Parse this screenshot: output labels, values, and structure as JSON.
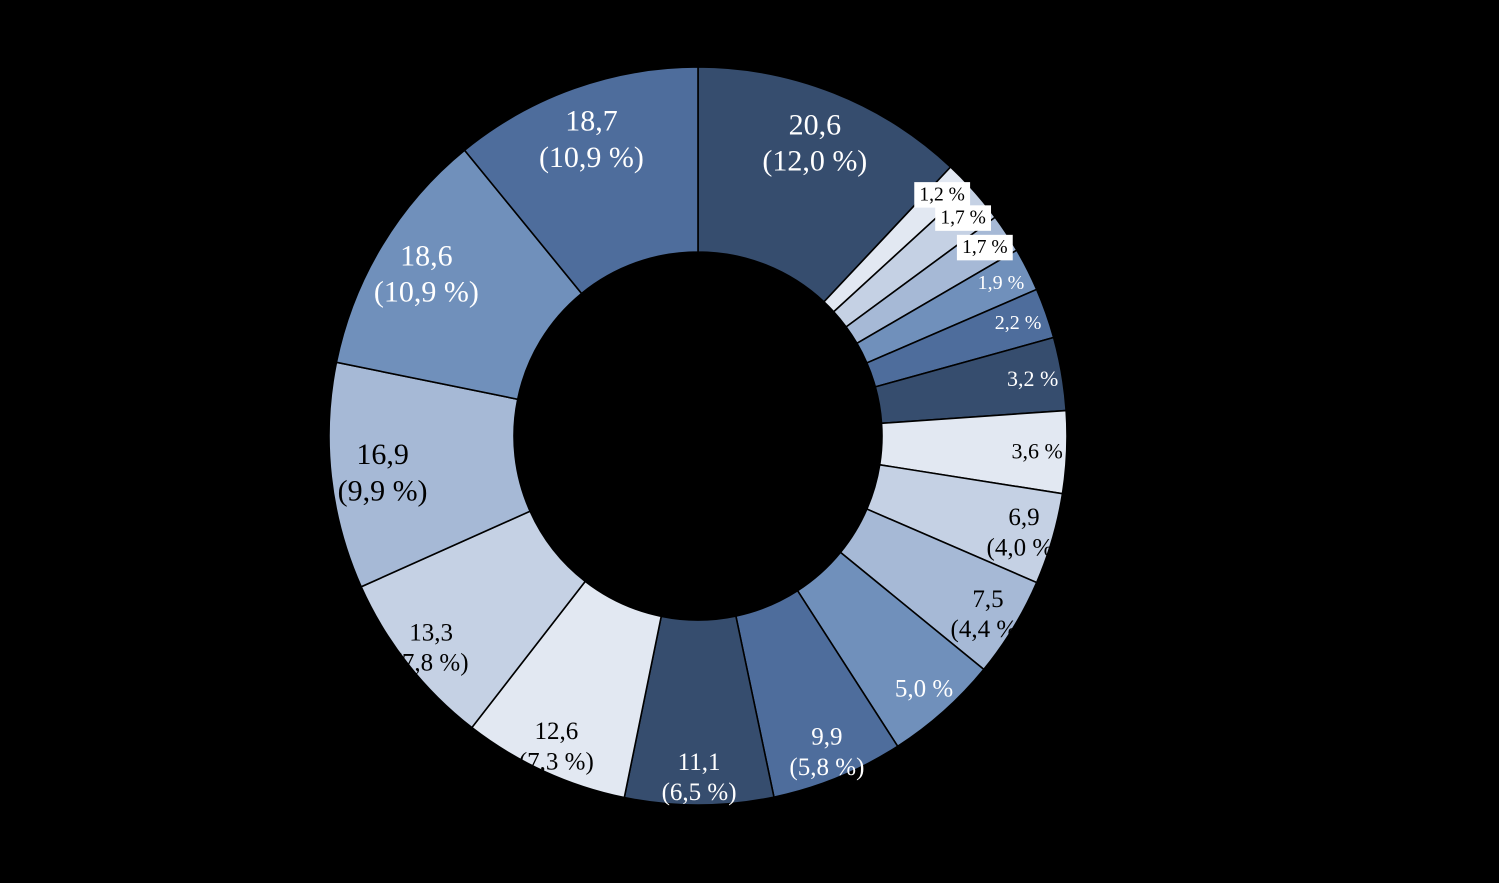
{
  "chart_data": {
    "type": "pie",
    "subtype": "donut",
    "title": "",
    "legend": "none",
    "background": "#000000",
    "border_color": "#000000",
    "start_angle_deg": 0,
    "direction": "clockwise",
    "inner_radius_ratio": 0.5,
    "label_format": "value (percent %), comma decimal separator",
    "palette": [
      "#E2E8F2",
      "#C5D1E4",
      "#A6B9D6",
      "#7090BB",
      "#4E6D9C",
      "#364D6E"
    ],
    "text_colors": {
      "light": "#FFFFFF",
      "dark": "#000000"
    },
    "label_box_fill": "#FFFFFF",
    "slices": [
      {
        "value": 20.6,
        "pct": 12.0,
        "value_label": "20,6",
        "pct_label": "(12,0 %)",
        "shade": 6,
        "text": "light",
        "boxed": false
      },
      {
        "pct": 1.2,
        "pct_label": "1,2 %",
        "shade": 1,
        "text": "dark",
        "boxed": true
      },
      {
        "pct": 1.7,
        "pct_label": "1,7 %",
        "shade": 2,
        "text": "dark",
        "boxed": true
      },
      {
        "pct": 1.7,
        "pct_label": "1,7 %",
        "shade": 3,
        "text": "dark",
        "boxed": true
      },
      {
        "pct": 1.9,
        "pct_label": "1,9 %",
        "shade": 4,
        "text": "light",
        "boxed": false
      },
      {
        "pct": 2.2,
        "pct_label": "2,2 %",
        "shade": 5,
        "text": "light",
        "boxed": false
      },
      {
        "pct": 3.2,
        "pct_label": "3,2 %",
        "shade": 6,
        "text": "light",
        "boxed": false
      },
      {
        "pct": 3.6,
        "pct_label": "3,6 %",
        "shade": 1,
        "text": "dark",
        "boxed": false
      },
      {
        "value": 6.9,
        "pct": 4.0,
        "value_label": "6,9",
        "pct_label": "(4,0 %)",
        "shade": 2,
        "text": "dark",
        "boxed": false
      },
      {
        "value": 7.5,
        "pct": 4.4,
        "value_label": "7,5",
        "pct_label": "(4,4 %)",
        "shade": 3,
        "text": "dark",
        "boxed": false
      },
      {
        "pct": 5.0,
        "pct_label": "5,0 %",
        "shade": 4,
        "text": "light",
        "boxed": false
      },
      {
        "value": 9.9,
        "pct": 5.8,
        "value_label": "9,9",
        "pct_label": "(5,8 %)",
        "shade": 5,
        "text": "light",
        "boxed": false
      },
      {
        "value": 11.1,
        "pct": 6.5,
        "value_label": "11,1",
        "pct_label": "(6,5 %)",
        "shade": 6,
        "text": "light",
        "boxed": false
      },
      {
        "value": 12.6,
        "pct": 7.3,
        "value_label": "12,6",
        "pct_label": "(7,3 %)",
        "shade": 1,
        "text": "dark",
        "boxed": false
      },
      {
        "value": 13.3,
        "pct": 7.8,
        "value_label": "13,3",
        "pct_label": "(7,8 %)",
        "shade": 2,
        "text": "dark",
        "boxed": false
      },
      {
        "value": 16.9,
        "pct": 9.9,
        "value_label": "16,9",
        "pct_label": "(9,9 %)",
        "shade": 3,
        "text": "dark",
        "boxed": false
      },
      {
        "value": 18.6,
        "pct": 10.9,
        "value_label": "18,6",
        "pct_label": "(10,9 %)",
        "shade": 4,
        "text": "light",
        "boxed": false
      },
      {
        "value": 18.7,
        "pct": 10.9,
        "value_label": "18,7",
        "pct_label": "(10,9 %)",
        "shade": 5,
        "text": "light",
        "boxed": false
      }
    ]
  }
}
